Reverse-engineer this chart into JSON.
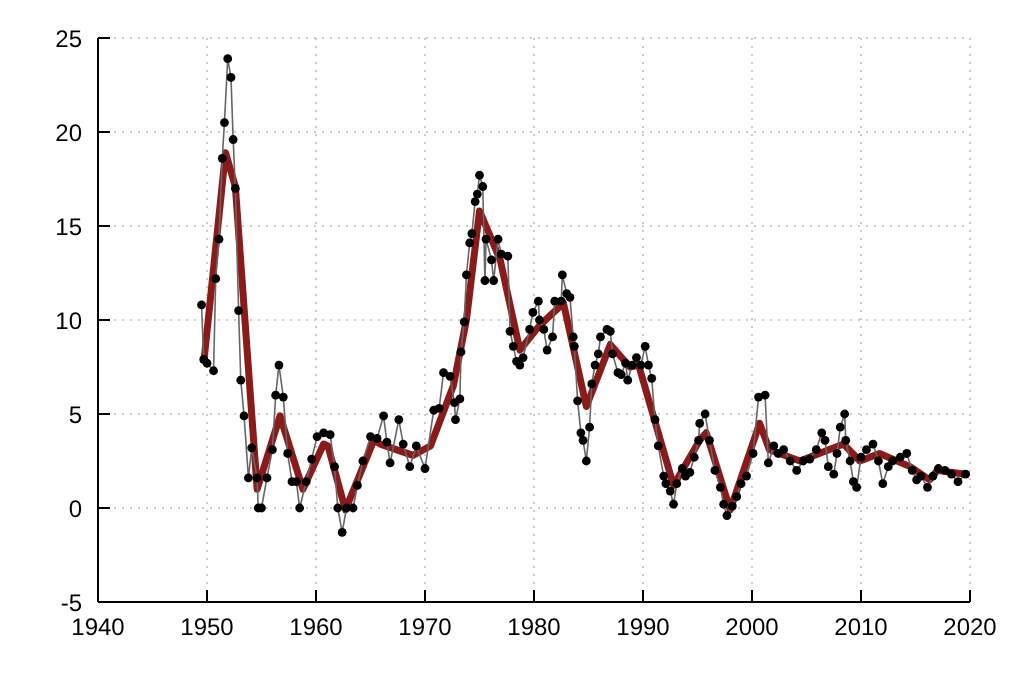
{
  "chart_data": {
    "type": "line",
    "xlim": [
      1940,
      2020
    ],
    "xticks": [
      1940,
      1950,
      1960,
      1970,
      1980,
      1990,
      2000,
      2010,
      2020
    ],
    "ylim": [
      -5,
      25
    ],
    "yticks": [
      -5,
      0,
      5,
      10,
      15,
      20,
      25
    ],
    "grid": true,
    "marker": "circle",
    "series": [
      {
        "color": "#000000",
        "x": [
          1949.5,
          1949.7,
          1950.0,
          1950.6,
          1950.8,
          1951.1,
          1951.4,
          1951.6,
          1951.9,
          1952.2,
          1952.4,
          1952.6,
          1952.9,
          1953.1,
          1953.4,
          1953.8,
          1954.1,
          1954.6,
          1954.7,
          1955.0,
          1955.5,
          1956.0,
          1956.3,
          1956.6,
          1957.0,
          1957.4,
          1957.8,
          1958.2,
          1958.5,
          1959.1,
          1959.6,
          1960.1,
          1960.7,
          1961.3,
          1961.7,
          1962.0,
          1962.4,
          1962.8,
          1963.4,
          1963.8,
          1964.3,
          1965.0,
          1965.6,
          1966.2,
          1966.5,
          1966.8,
          1967.6,
          1968.0,
          1968.6,
          1969.2,
          1970.0,
          1970.8,
          1971.3,
          1971.7,
          1972.3,
          1972.7,
          1972.8,
          1973.2,
          1973.3,
          1973.6,
          1973.8,
          1974.1,
          1974.3,
          1974.6,
          1974.8,
          1975.0,
          1975.3,
          1975.5,
          1975.6,
          1976.1,
          1976.3,
          1976.7,
          1977.0,
          1977.6,
          1977.8,
          1978.1,
          1978.4,
          1978.7,
          1979.0,
          1979.6,
          1979.9,
          1980.4,
          1980.5,
          1980.9,
          1981.2,
          1981.7,
          1981.9,
          1982.5,
          1982.6,
          1983.0,
          1983.3,
          1983.6,
          1983.7,
          1984.0,
          1984.3,
          1984.5,
          1984.8,
          1985.1,
          1985.3,
          1985.6,
          1985.9,
          1986.1,
          1986.7,
          1987.0,
          1987.2,
          1987.7,
          1988.0,
          1988.4,
          1988.6,
          1989.0,
          1989.4,
          1989.8,
          1990.2,
          1990.5,
          1990.8,
          1991.1,
          1991.4,
          1991.9,
          1992.1,
          1992.5,
          1992.8,
          1993.1,
          1993.6,
          1993.9,
          1994.3,
          1994.7,
          1995.1,
          1995.2,
          1995.7,
          1996.1,
          1996.6,
          1997.1,
          1997.4,
          1997.7,
          1998.2,
          1998.6,
          1999.0,
          1999.5,
          2000.1,
          2000.6,
          2001.2,
          2001.5,
          2002.0,
          2002.4,
          2002.9,
          2003.5,
          2004.1,
          2004.7,
          2005.3,
          2005.9,
          2006.4,
          2006.7,
          2007.0,
          2007.5,
          2007.8,
          2008.1,
          2008.5,
          2008.6,
          2009.0,
          2009.3,
          2009.6,
          2010.0,
          2010.5,
          2011.1,
          2011.6,
          2012.0,
          2012.5,
          2012.9,
          2013.6,
          2014.2,
          2014.7,
          2015.1,
          2015.5,
          2016.1,
          2016.6,
          2017.1,
          2017.7,
          2018.3,
          2018.9,
          2019.6
        ],
        "values": [
          10.8,
          7.9,
          7.7,
          7.3,
          12.2,
          14.3,
          18.6,
          20.5,
          23.9,
          22.9,
          19.6,
          17.0,
          10.5,
          6.8,
          4.9,
          1.6,
          3.2,
          1.6,
          0.0,
          0.0,
          1.6,
          3.1,
          6.0,
          7.6,
          5.9,
          2.9,
          1.4,
          1.4,
          0.0,
          1.4,
          2.6,
          3.8,
          4.0,
          3.9,
          2.2,
          0.0,
          -1.3,
          0.0,
          0.0,
          1.2,
          2.5,
          3.8,
          3.7,
          4.9,
          3.5,
          2.4,
          4.7,
          3.4,
          2.2,
          3.3,
          2.1,
          5.2,
          5.3,
          7.2,
          7.0,
          5.6,
          4.7,
          5.8,
          8.3,
          9.9,
          12.4,
          14.1,
          14.6,
          16.3,
          16.7,
          17.7,
          17.1,
          12.1,
          14.3,
          13.2,
          12.1,
          14.3,
          13.5,
          13.4,
          9.4,
          8.6,
          7.8,
          7.6,
          8.0,
          9.5,
          10.4,
          11.0,
          10.0,
          9.5,
          8.4,
          9.1,
          11.0,
          11.0,
          12.4,
          11.4,
          11.2,
          9.1,
          8.6,
          5.7,
          4.0,
          3.6,
          2.5,
          4.3,
          6.6,
          7.6,
          8.2,
          9.1,
          9.5,
          9.4,
          8.2,
          7.2,
          7.1,
          7.7,
          6.8,
          7.6,
          8.0,
          7.6,
          8.6,
          7.6,
          6.9,
          4.7,
          3.3,
          1.7,
          1.3,
          0.9,
          0.2,
          1.3,
          2.1,
          1.7,
          1.9,
          2.7,
          3.6,
          4.5,
          5.0,
          3.6,
          2.0,
          1.1,
          0.2,
          -0.4,
          0.1,
          0.6,
          1.3,
          1.7,
          2.9,
          5.9,
          6.0,
          2.4,
          3.3,
          2.9,
          3.1,
          2.5,
          2.0,
          2.5,
          2.6,
          3.1,
          4.0,
          3.6,
          2.2,
          1.8,
          2.9,
          4.3,
          5.0,
          3.6,
          2.5,
          1.4,
          1.1,
          2.7,
          3.1,
          3.4,
          2.5,
          1.3,
          2.2,
          2.5,
          2.7,
          2.9,
          2.0,
          1.5,
          1.7,
          1.1,
          1.7,
          2.1,
          2.0,
          1.8,
          1.4,
          1.8
        ]
      },
      {
        "color": "#8b1a1a",
        "marker": "none",
        "x": [
          1949.7,
          1951.7,
          1952.6,
          1954.6,
          1956.7,
          1958.8,
          1960.7,
          1961.1,
          1962.7,
          1965.3,
          1965.9,
          1968.9,
          1970.5,
          1972.6,
          1973.8,
          1975.0,
          1976.9,
          1978.7,
          1980.5,
          1982.7,
          1984.8,
          1987.0,
          1988.8,
          1989.6,
          1992.8,
          1995.2,
          1995.8,
          1998.0,
          2000.7,
          2001.6,
          2004.4,
          2008.4,
          2009.9,
          2011.7,
          2014.5,
          2016.3,
          2017.0,
          2019.6
        ],
        "values": [
          7.7,
          18.9,
          17.1,
          1.0,
          4.9,
          1.0,
          3.4,
          3.3,
          -0.1,
          3.6,
          3.4,
          2.8,
          3.3,
          6.5,
          10.0,
          15.8,
          13.2,
          8.4,
          9.7,
          10.9,
          5.4,
          8.7,
          7.5,
          7.6,
          1.2,
          3.6,
          4.0,
          -0.1,
          4.5,
          3.1,
          2.5,
          3.4,
          2.5,
          2.9,
          2.2,
          1.5,
          2.0,
          1.8
        ]
      }
    ]
  }
}
